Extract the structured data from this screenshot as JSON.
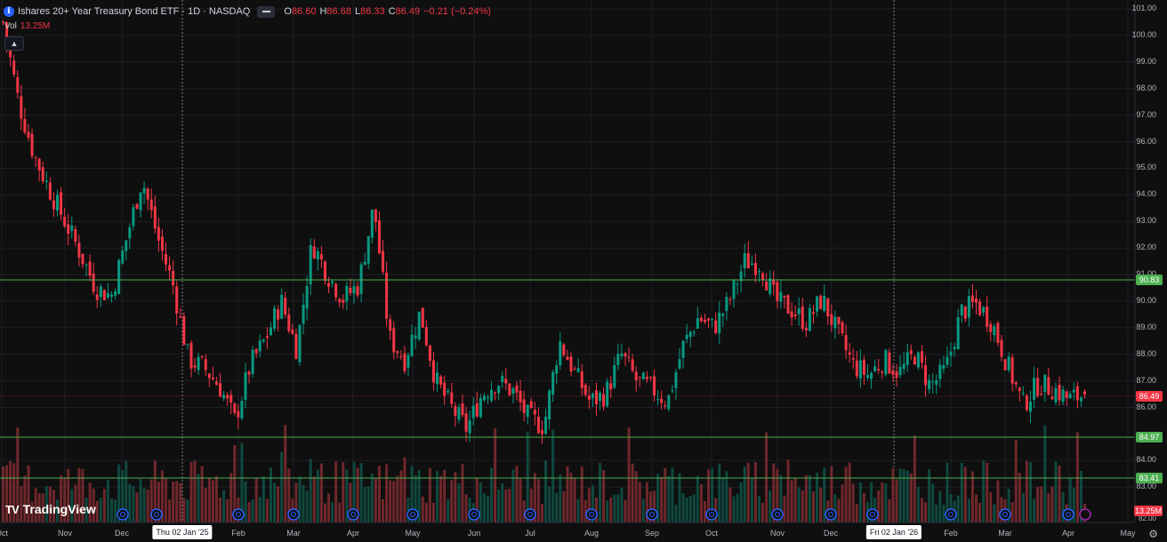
{
  "legend": {
    "title": "Ishares 20+ Year Treasury Bond ETF · 1D · NASDAQ",
    "open_label": "O",
    "open": "86.60",
    "high_label": "H",
    "high": "86.68",
    "low_label": "L",
    "low": "86.33",
    "close_label": "C",
    "close": "86.49",
    "change": "−0.21 (−0.24%)",
    "vol_label": "Vol",
    "vol_value": "13.25M"
  },
  "colors": {
    "up": "#089981",
    "down": "#f23645",
    "hline": "#4caf50",
    "background": "#0f0f0f"
  },
  "price_axis": {
    "ticks": [
      "101.00",
      "100.00",
      "99.00",
      "98.00",
      "97.00",
      "96.00",
      "95.00",
      "94.00",
      "93.00",
      "92.00",
      "91.00",
      "90.00",
      "89.00",
      "88.00",
      "87.00",
      "86.00",
      "84.00",
      "83.00"
    ],
    "bottom_tick": "82.00"
  },
  "price_tags": {
    "level_1": "90.83",
    "last": "86.49",
    "level_2": "84.97",
    "level_3": "83.41",
    "volume": "13.25M"
  },
  "time_axis": {
    "months": [
      "Oct",
      "Nov",
      "Dec",
      "Feb",
      "Mar",
      "Apr",
      "May",
      "Jun",
      "Jul",
      "Aug",
      "Sep",
      "Oct",
      "Nov",
      "Dec",
      "Feb",
      "Mar",
      "Apr",
      "May"
    ],
    "crosshair_date_1": "Thu 02 Jan '25",
    "crosshair_date_2": "Fri 02 Jan '26"
  },
  "brand": {
    "name": "TradingView",
    "mark": "TV"
  },
  "chart_data": {
    "type": "candlestick",
    "ylim": [
      82.0,
      101.0
    ],
    "horizontal_levels": [
      90.83,
      84.97,
      83.41
    ],
    "last_price": 86.49,
    "anchor_closes": [
      100.5,
      97.5,
      95.5,
      94.2,
      93.0,
      91.8,
      90.5,
      90.2,
      92.4,
      94.6,
      92.4,
      90.6,
      87.8,
      87.5,
      86.8,
      85.5,
      87.6,
      88.6,
      90.0,
      88.2,
      92.2,
      91.0,
      90.1,
      90.6,
      93.6,
      88.6,
      87.8,
      89.6,
      87.0,
      86.0,
      85.2,
      86.5,
      87.0,
      86.6,
      85.6,
      85.3,
      88.5,
      87.3,
      86.2,
      86.5,
      88.0,
      87.0,
      86.7,
      86.2,
      88.3,
      89.4,
      89.0,
      90.0,
      91.5,
      91.4,
      90.0,
      89.7,
      89.2,
      90.1,
      88.8,
      87.6,
      87.2,
      87.8,
      87.3,
      88.0,
      86.8,
      87.4,
      89.6,
      89.9,
      89.2,
      87.6,
      86.1,
      86.9,
      86.7,
      86.3,
      86.49
    ]
  }
}
